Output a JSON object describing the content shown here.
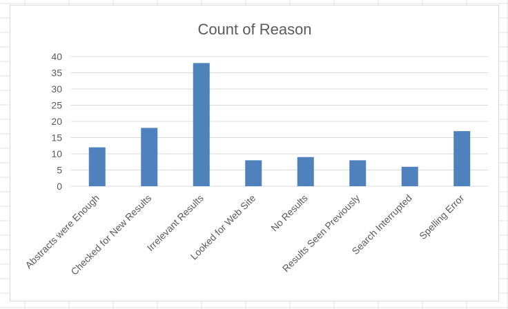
{
  "chart_data": {
    "type": "bar",
    "title": "Count of Reason",
    "xlabel": "",
    "ylabel": "",
    "categories": [
      "Abstracts were Enough",
      "Checked for New Results",
      "Irrelevant Results",
      "Looked for Web Site",
      "No Results",
      "Results Seen Previously",
      "Search Interrupted",
      "Spelling Error"
    ],
    "values": [
      12,
      18,
      38,
      8,
      9,
      8,
      6,
      17
    ],
    "ylim": [
      0,
      40
    ],
    "yticks": [
      0,
      5,
      10,
      15,
      20,
      25,
      30,
      35,
      40
    ],
    "grid": true,
    "legend": "none",
    "bar_color": "#4f81bd"
  }
}
